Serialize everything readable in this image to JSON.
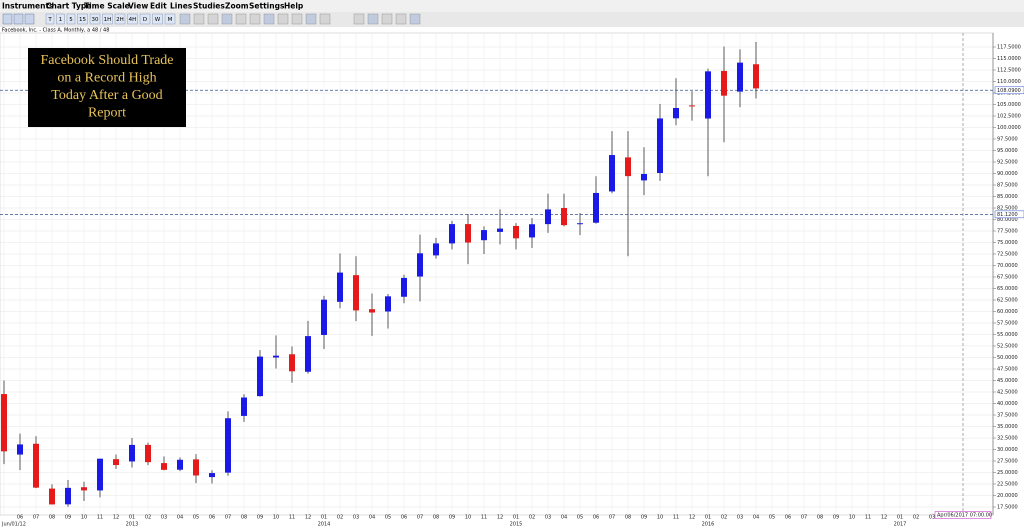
{
  "menu": [
    "Instruments",
    "Chart Type",
    "Time Scale",
    "View",
    "Edit",
    "Lines",
    "Studies",
    "Zoom",
    "Settings",
    "Help"
  ],
  "toolbar": [
    "T",
    "1",
    "5",
    "15",
    "30",
    "1H",
    "2H",
    "4H",
    "D",
    "W",
    "M"
  ],
  "chart_data": {
    "type": "candlestick",
    "title": "Facebook, Inc. - Class A, Monthly, a 48 / 48",
    "annotation": [
      "Facebook Should Trade",
      "on a Record High",
      "Today After a Good",
      "Report"
    ],
    "start_label": "Jun/01/12",
    "cursor_label": "Apr/06/2017 07:00.00",
    "up_color": "#1a1ae6",
    "down_color": "#e61a1a",
    "grid": true,
    "categories": [
      null,
      "06",
      "07",
      "08",
      "09",
      "10",
      "11",
      "12",
      "01",
      "02",
      "03",
      "04",
      "05",
      "06",
      "07",
      "08",
      "09",
      "10",
      "11",
      "12",
      "01",
      "02",
      "03",
      "04",
      "05",
      "06",
      "07",
      "08",
      "09",
      "10",
      "11",
      "12",
      "01",
      "02",
      "03",
      "04",
      "05",
      "06",
      "07",
      "08",
      "09",
      "10",
      "11",
      "12",
      "01",
      "02",
      "03",
      "04",
      "05",
      "06",
      "07",
      "08",
      "09",
      "10",
      "11",
      "12",
      "01",
      "02",
      "03"
    ],
    "years": [
      "2013",
      "2014",
      "2015",
      "2016",
      "2017"
    ],
    "open": [
      42.05,
      28.9,
      31.25,
      21.5,
      18.08,
      21.8,
      21.1,
      27.9,
      27.4,
      31.0,
      27.05,
      25.6,
      27.85,
      24.0,
      24.97,
      37.3,
      41.6,
      50.0,
      50.7,
      46.9,
      54.9,
      62.1,
      67.9,
      60.5,
      60.0,
      63.2,
      67.6,
      72.2,
      74.8,
      79.0,
      75.5,
      77.3,
      78.6,
      76.1,
      79.0,
      82.5,
      79.0,
      79.3,
      86.1,
      93.5,
      88.5,
      90.1,
      102.0,
      104.8,
      101.95,
      112.3,
      107.8,
      113.75,
      null,
      null,
      null,
      null,
      null,
      null,
      null,
      null,
      null,
      null,
      null
    ],
    "high": [
      45.0,
      33.45,
      32.88,
      22.45,
      23.37,
      23.0,
      28.0,
      28.9,
      32.5,
      31.5,
      28.5,
      28.3,
      29.0,
      25.5,
      38.3,
      42.0,
      51.6,
      54.8,
      52.4,
      57.96,
      63.4,
      72.6,
      72.0,
      63.9,
      63.8,
      68.0,
      76.7,
      76.0,
      79.7,
      81.2,
      78.5,
      82.2,
      79.2,
      80.3,
      85.6,
      85.6,
      81.4,
      89.4,
      99.2,
      99.2,
      95.7,
      105.1,
      110.7,
      107.9,
      112.8,
      117.6,
      116.99,
      118.6,
      null,
      null,
      null,
      null,
      null,
      null,
      null,
      null,
      null,
      null,
      null
    ],
    "low": [
      26.83,
      25.52,
      21.61,
      18.03,
      17.55,
      18.8,
      19.6,
      25.8,
      26.1,
      26.6,
      25.5,
      25.3,
      22.7,
      22.6,
      24.3,
      36.0,
      41.5,
      47.6,
      44.5,
      46.5,
      51.85,
      60.7,
      57.9,
      54.7,
      56.3,
      61.8,
      62.2,
      71.5,
      73.5,
      70.3,
      72.5,
      74.6,
      73.5,
      73.8,
      77.1,
      78.5,
      76.6,
      79.1,
      85.7,
      72.0,
      85.3,
      88.4,
      100.5,
      101.5,
      89.4,
      96.8,
      104.4,
      106.3,
      null,
      null,
      null,
      null,
      null,
      null,
      null,
      null,
      null,
      null,
      null
    ],
    "close": [
      29.6,
      31.1,
      21.71,
      18.06,
      21.66,
      21.11,
      28.0,
      26.62,
      31.0,
      27.25,
      25.58,
      27.77,
      24.35,
      24.88,
      36.8,
      41.3,
      50.2,
      50.4,
      47.0,
      54.65,
      62.57,
      68.46,
      60.24,
      59.78,
      63.3,
      67.3,
      72.65,
      74.8,
      79.0,
      74.99,
      77.7,
      78.02,
      75.91,
      78.97,
      82.2,
      78.77,
      79.19,
      85.77,
      94.01,
      89.43,
      89.9,
      101.97,
      104.24,
      104.66,
      112.21,
      106.92,
      114.1,
      108.5,
      null,
      null,
      null,
      null,
      null,
      null,
      null,
      null,
      null,
      null,
      null
    ],
    "reference_lines": [
      {
        "value": 108.09,
        "label": "108.0900"
      },
      {
        "value": 81.12,
        "label": "81.1200"
      }
    ],
    "ylim": [
      17.5,
      117.5
    ],
    "yticks": [
      {
        "value": 17.5,
        "label": "17.5000"
      },
      {
        "value": 20,
        "label": "20.0000"
      },
      {
        "value": 22.5,
        "label": "22.5000"
      },
      {
        "value": 25,
        "label": "25.0000"
      },
      {
        "value": 27.5,
        "label": "27.5000"
      },
      {
        "value": 30,
        "label": "30.0000"
      },
      {
        "value": 32.5,
        "label": "32.5000"
      },
      {
        "value": 35,
        "label": "35.0000"
      },
      {
        "value": 37.5,
        "label": "37.5000"
      },
      {
        "value": 40,
        "label": "40.0000"
      },
      {
        "value": 42.5,
        "label": "42.5000"
      },
      {
        "value": 45,
        "label": "45.0000"
      },
      {
        "value": 47.5,
        "label": "47.5000"
      },
      {
        "value": 50,
        "label": "50.0000"
      },
      {
        "value": 52.5,
        "label": "52.5000"
      },
      {
        "value": 55,
        "label": "55.0000"
      },
      {
        "value": 57.5,
        "label": "57.5000"
      },
      {
        "value": 60,
        "label": "60.0000"
      },
      {
        "value": 62.5,
        "label": "62.5000"
      },
      {
        "value": 65,
        "label": "65.0000"
      },
      {
        "value": 67.5,
        "label": "67.5000"
      },
      {
        "value": 70,
        "label": "70.0000"
      },
      {
        "value": 72.5,
        "label": "72.5000"
      },
      {
        "value": 75,
        "label": "75.0000"
      },
      {
        "value": 77.5,
        "label": "77.5000"
      },
      {
        "value": 80,
        "label": "80.0000"
      },
      {
        "value": 82.5,
        "label": "82.5000"
      },
      {
        "value": 85,
        "label": "85.0000"
      },
      {
        "value": 87.5,
        "label": "87.5000"
      },
      {
        "value": 90,
        "label": "90.0000"
      },
      {
        "value": 92.5,
        "label": "92.5000"
      },
      {
        "value": 95,
        "label": "95.0000"
      },
      {
        "value": 97.5,
        "label": "97.5000"
      },
      {
        "value": 100,
        "label": "100.0000"
      },
      {
        "value": 102.5,
        "label": "102.5000"
      },
      {
        "value": 105,
        "label": "105.0000"
      },
      {
        "value": 107.5,
        "label": "107.5000"
      },
      {
        "value": 110,
        "label": "110.0000"
      },
      {
        "value": 112.5,
        "label": "112.5000"
      },
      {
        "value": 115,
        "label": "115.0000"
      },
      {
        "value": 117.5,
        "label": "117.5000"
      }
    ]
  }
}
